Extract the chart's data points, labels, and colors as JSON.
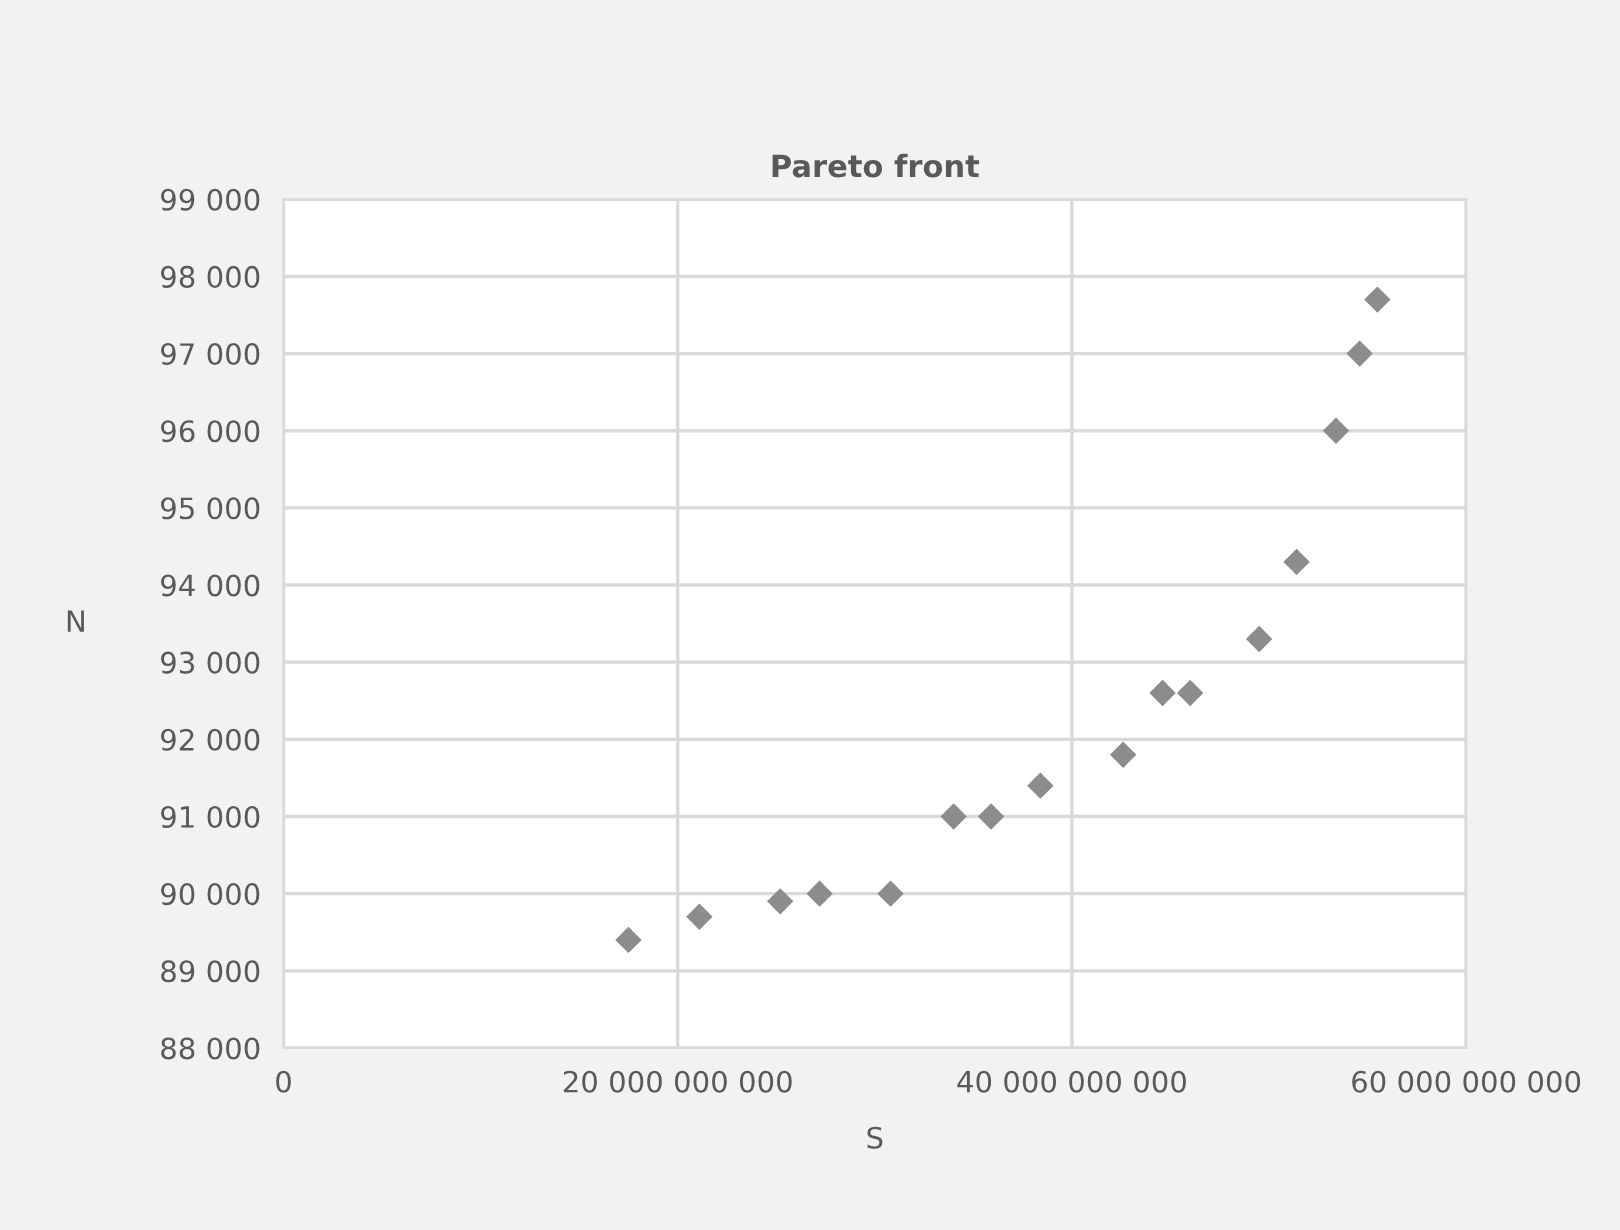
{
  "chart_data": {
    "type": "scatter",
    "title": "Pareto front",
    "xlabel": "S",
    "ylabel": "N",
    "series": [
      {
        "color": "#8c8c8c",
        "x": [
          17500000000,
          21100000000,
          25200000000,
          27200000000,
          30800000000,
          34000000000,
          35900000000,
          38400000000,
          42600000000,
          44600000000,
          46000000000,
          49500000000,
          51400000000,
          53400000000,
          54600000000,
          55500000000
        ],
        "values": [
          89400,
          89700,
          89900,
          90000,
          90000,
          91000,
          91000,
          91400,
          91800,
          92600,
          92600,
          93300,
          94300,
          96000,
          97000,
          97700
        ]
      }
    ],
    "marker": "diamond",
    "grid": true,
    "legend": false,
    "xlim": [
      0,
      60000000000
    ],
    "xticks": [
      0,
      {
        "value": 20000000000,
        "label": "20 000 000 000"
      },
      {
        "value": 40000000000,
        "label": "40 000 000 000"
      },
      {
        "value": 60000000000,
        "label": "60 000 000 000"
      }
    ],
    "ylim": [
      88000,
      99000
    ],
    "yticks": [
      {
        "value": 88000,
        "label": "88 000"
      },
      {
        "value": 89000,
        "label": "89 000"
      },
      {
        "value": 90000,
        "label": "90 000"
      },
      {
        "value": 91000,
        "label": "91 000"
      },
      {
        "value": 92000,
        "label": "92 000"
      },
      {
        "value": 93000,
        "label": "93 000"
      },
      {
        "value": 94000,
        "label": "94 000"
      },
      {
        "value": 95000,
        "label": "95 000"
      },
      {
        "value": 96000,
        "label": "96 000"
      },
      {
        "value": 97000,
        "label": "97 000"
      },
      {
        "value": 98000,
        "label": "98 000"
      },
      {
        "value": 99000,
        "label": "99 000"
      }
    ]
  }
}
